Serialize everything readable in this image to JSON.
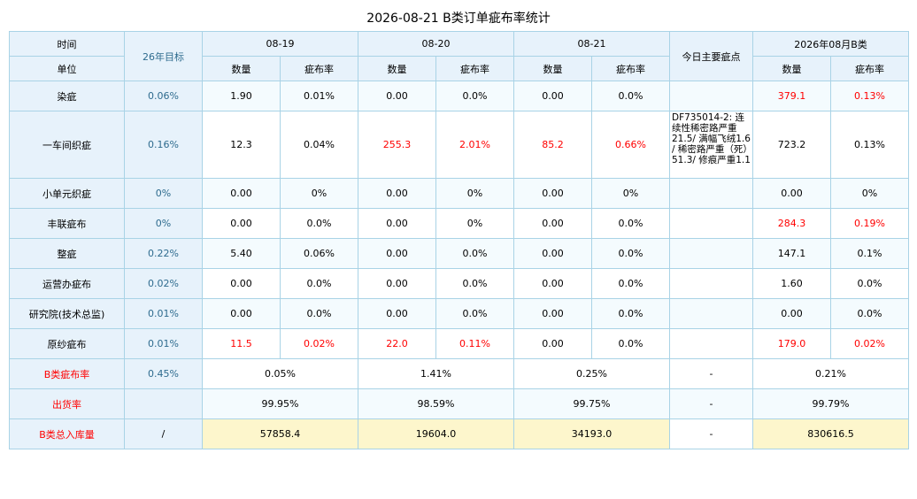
{
  "title": "2026-08-21 B类订单疵布率统计",
  "header": {
    "time_label": "时间",
    "unit_label": "单位",
    "target_label": "26年目标",
    "dates": [
      "08-19",
      "08-20",
      "08-21"
    ],
    "main_defect_label": "今日主要疵点",
    "month_label": "2026年08月B类",
    "qty_label": "数量",
    "rate_label": "疵布率"
  },
  "rows": [
    {
      "name": "染疵",
      "target": "0.06%",
      "d1q": "1.90",
      "d1r": "0.01%",
      "d2q": "0.00",
      "d2r": "0.0%",
      "d3q": "0.00",
      "d3r": "0.0%",
      "note": "",
      "mq": "379.1",
      "mr": "0.13%"
    },
    {
      "name": "一车间织疵",
      "target": "0.16%",
      "d1q": "12.3",
      "d1r": "0.04%",
      "d2q": "255.3",
      "d2r": "2.01%",
      "d3q": "85.2",
      "d3r": "0.66%",
      "note": "DF735014-2: 连续性稀密路严重21.5/ 满幅飞绒1.6 / 稀密路严重（死）51.3/ 修痕严重1.1",
      "mq": "723.2",
      "mr": "0.13%"
    },
    {
      "name": "小单元织疵",
      "target": "0%",
      "d1q": "0.00",
      "d1r": "0%",
      "d2q": "0.00",
      "d2r": "0%",
      "d3q": "0.00",
      "d3r": "0%",
      "note": "",
      "mq": "0.00",
      "mr": "0%"
    },
    {
      "name": "丰联疵布",
      "target": "0%",
      "d1q": "0.00",
      "d1r": "0.0%",
      "d2q": "0.00",
      "d2r": "0%",
      "d3q": "0.00",
      "d3r": "0.0%",
      "note": "",
      "mq": "284.3",
      "mr": "0.19%"
    },
    {
      "name": "整疵",
      "target": "0.22%",
      "d1q": "5.40",
      "d1r": "0.06%",
      "d2q": "0.00",
      "d2r": "0.0%",
      "d3q": "0.00",
      "d3r": "0.0%",
      "note": "",
      "mq": "147.1",
      "mr": "0.1%"
    },
    {
      "name": "运营办疵布",
      "target": "0.02%",
      "d1q": "0.00",
      "d1r": "0.0%",
      "d2q": "0.00",
      "d2r": "0.0%",
      "d3q": "0.00",
      "d3r": "0.0%",
      "note": "",
      "mq": "1.60",
      "mr": "0.0%"
    },
    {
      "name": "研究院(技术总监)",
      "target": "0.01%",
      "d1q": "0.00",
      "d1r": "0.0%",
      "d2q": "0.00",
      "d2r": "0.0%",
      "d3q": "0.00",
      "d3r": "0.0%",
      "note": "",
      "mq": "0.00",
      "mr": "0.0%"
    },
    {
      "name": "原纱疵布",
      "target": "0.01%",
      "d1q": "11.5",
      "d1r": "0.02%",
      "d2q": "22.0",
      "d2r": "0.11%",
      "d3q": "0.00",
      "d3r": "0.0%",
      "note": "",
      "mq": "179.0",
      "mr": "0.02%"
    }
  ],
  "summary": {
    "b_rate": {
      "label": "B类疵布率",
      "target": "0.45%",
      "d1": "0.05%",
      "d2": "1.41%",
      "d3": "0.25%",
      "note": "-",
      "month": "0.21%"
    },
    "ship_rate": {
      "label": "出货率",
      "target": "",
      "d1": "99.95%",
      "d2": "98.59%",
      "d3": "99.75%",
      "note": "-",
      "month": "99.79%"
    },
    "inventory": {
      "label": "B类总入库量",
      "target": "/",
      "d1": "57858.4",
      "d2": "19604.0",
      "d3": "34193.0",
      "note": "-",
      "month": "830616.5"
    }
  },
  "colors": {
    "header_bg": "#e7f2fb",
    "border": "#a9d3e6",
    "target_text": "#2e6b8e",
    "alert_red": "#ff0000",
    "inventory_bg": "#fdf6cc"
  }
}
